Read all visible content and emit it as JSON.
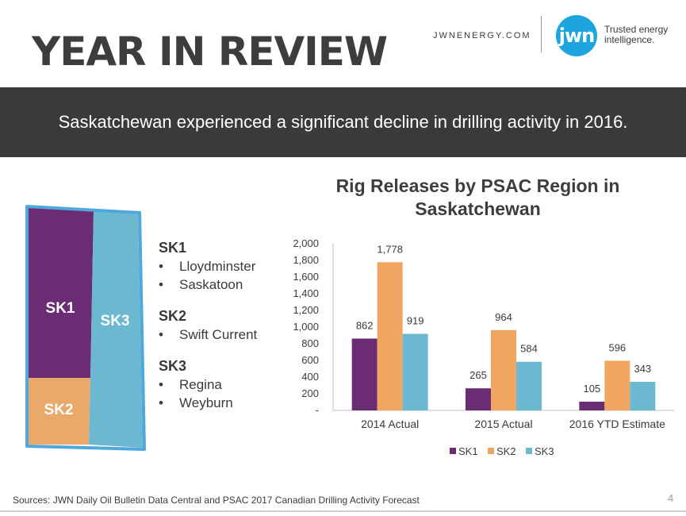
{
  "header": {
    "title": "YEAR IN REVIEW",
    "site": "JWNENERGY.COM",
    "logo_text": "jwn",
    "tagline_line1": "Trusted energy",
    "tagline_line2": "intelligence."
  },
  "banner": {
    "text": "Saskatchewan experienced a significant decline in drilling activity in 2016."
  },
  "map": {
    "labels": {
      "sk1": "SK1",
      "sk2": "SK2",
      "sk3": "SK3"
    },
    "colors": {
      "border": "#4fa8dc",
      "sk1": "#6a2d73",
      "sk2": "#e8a96a",
      "sk3": "#6cb8d1"
    }
  },
  "regions": [
    {
      "name": "SK1",
      "cities": [
        "Lloydminster",
        "Saskatoon"
      ]
    },
    {
      "name": "SK2",
      "cities": [
        "Swift Current"
      ]
    },
    {
      "name": "SK3",
      "cities": [
        "Regina",
        "Weyburn"
      ]
    }
  ],
  "chart_data": {
    "type": "bar",
    "title": "Rig Releases by PSAC Region in Saskatchewan",
    "categories": [
      "2014 Actual",
      "2015 Actual",
      "2016 YTD Estimate"
    ],
    "series": [
      {
        "name": "SK1",
        "values": [
          862,
          265,
          105
        ],
        "color": "#6a2d73"
      },
      {
        "name": "SK2",
        "values": [
          1778,
          964,
          596
        ],
        "color": "#f0a660"
      },
      {
        "name": "SK3",
        "values": [
          919,
          584,
          343
        ],
        "color": "#6cb8d1"
      }
    ],
    "ylim": [
      0,
      2000
    ],
    "yticks": [
      "-",
      "200",
      "400",
      "600",
      "800",
      "1,000",
      "1,200",
      "1,400",
      "1,600",
      "1,800",
      "2,000"
    ],
    "data_labels": [
      [
        "862",
        "1,778",
        "919"
      ],
      [
        "265",
        "964",
        "584"
      ],
      [
        "105",
        "596",
        "343"
      ]
    ],
    "legend": "bottom",
    "grid": false
  },
  "footer": {
    "source": "Sources: JWN Daily Oil Bulletin Data Central and PSAC 2017 Canadian Drilling Activity Forecast",
    "page": "4"
  }
}
